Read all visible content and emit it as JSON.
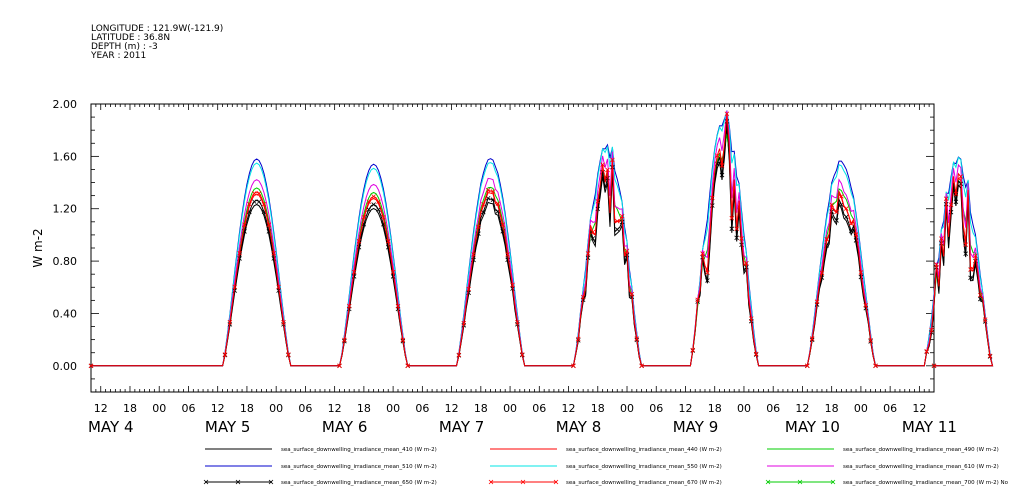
{
  "header": {
    "longitude": "LONGITUDE : 121.9W(-121.9)",
    "latitude": "LATITUDE : 36.8N",
    "depth": "DEPTH (m) : -3",
    "year": "YEAR : 2011"
  },
  "chart_data": {
    "type": "line",
    "title": "",
    "ylabel": "W m-2",
    "ylim": [
      -0.2,
      2.0
    ],
    "y_ticks": [
      "0.00",
      "0.40",
      "0.80",
      "1.20",
      "1.60",
      "2.00"
    ],
    "x_hour_labels": [
      "12",
      "18",
      "00",
      "06",
      "12",
      "18",
      "00",
      "06",
      "12",
      "18",
      "00",
      "06",
      "12",
      "18",
      "00",
      "06",
      "12",
      "18",
      "00",
      "06",
      "12",
      "18",
      "00",
      "06",
      "12",
      "18",
      "00",
      "06",
      "12",
      "18",
      "00",
      "06"
    ],
    "x_day_labels": [
      "MAY  4",
      "MAY  5",
      "MAY  6",
      "MAY  7",
      "MAY  8",
      "MAY  9",
      "MAY 10",
      "MAY 11"
    ],
    "x_range_hours": [
      -14,
      159
    ],
    "days": [
      {
        "label": "MAY 4",
        "peak_blue": 1.58,
        "noise": 0
      },
      {
        "label": "MAY 5",
        "peak_blue": 1.54,
        "noise": 0
      },
      {
        "label": "MAY 6",
        "peak_blue": 1.58,
        "noise": 0.05
      },
      {
        "label": "MAY 7",
        "peak_blue": 1.66,
        "noise": 0.35
      },
      {
        "label": "MAY 8",
        "peak_blue": 1.85,
        "noise": 0.55
      },
      {
        "label": "MAY 9",
        "peak_blue": 1.57,
        "noise": 0.15
      },
      {
        "label": "MAY 10",
        "peak_blue": 1.55,
        "noise": 0.6
      }
    ],
    "series": [
      {
        "name": "sea_surface_downwelling_irradiance_mean_410 (W m-2)",
        "color": "#000000",
        "scale": 0.78,
        "marker": "none"
      },
      {
        "name": "sea_surface_downwelling_irradiance_mean_440 (W m-2)",
        "color": "#ff0000",
        "scale": 0.83,
        "marker": "none"
      },
      {
        "name": "sea_surface_downwelling_irradiance_mean_490 (W m-2)",
        "color": "#00cc00",
        "scale": 0.86,
        "marker": "none"
      },
      {
        "name": "sea_surface_downwelling_irradiance_mean_510 (W m-2)",
        "color": "#0000cc",
        "scale": 1.0,
        "marker": "none"
      },
      {
        "name": "sea_surface_downwelling_irradiance_mean_550 (W m-2)",
        "color": "#00e5e5",
        "scale": 0.98,
        "marker": "none"
      },
      {
        "name": "sea_surface_downwelling_irradiance_mean_610 (W m-2)",
        "color": "#e000e0",
        "scale": 0.9,
        "marker": "none"
      },
      {
        "name": "sea_surface_downwelling_irradiance_mean_650 (W m-2)",
        "color": "#000000",
        "scale": 0.8,
        "marker": "x"
      },
      {
        "name": "sea_surface_downwelling_irradiance_mean_670 (W m-2)",
        "color": "#ff0000",
        "scale": 0.84,
        "marker": "x"
      },
      {
        "name": "sea_surface_downwelling_irradiance_mean_700 (W m-2) No Valid Data",
        "color": "#00cc00",
        "scale": 0,
        "marker": "x"
      }
    ]
  }
}
